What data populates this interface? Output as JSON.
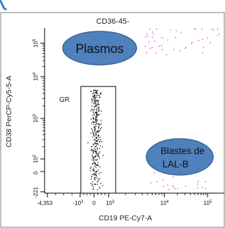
{
  "chart_data": {
    "type": "scatter",
    "title": "CD36-45-",
    "xlabel": "CD19 PE-Cy7-A",
    "ylabel": "CD38 PerCP-Cy5-5-A",
    "x_scale": "biexponential",
    "y_scale": "biexponential",
    "x_tick_labels": [
      "-4,353",
      "-10^3",
      "0",
      "10^3",
      "10^4",
      "10^5"
    ],
    "y_tick_labels": [
      "-221",
      "0",
      "10^2",
      "10^3",
      "10^4",
      "10^5"
    ],
    "gates": [
      {
        "name": "GR",
        "x_range": [
          -1000,
          1000
        ],
        "y_range": [
          -221,
          9000
        ]
      }
    ],
    "annotations": [
      {
        "text": "Plasmos",
        "color": "#4f81bd"
      },
      {
        "text": "Blastes de LAL-B",
        "color": "#4f81bd"
      }
    ],
    "series": [
      {
        "color": "#111111",
        "points": "dense events inside GR gate, concentrated near x 0 and y 10^1 to 10^2.5"
      },
      {
        "color": "#e040e0",
        "points": "sparse events near top-right and bottom-right regions"
      }
    ],
    "grid": false,
    "legend": "none"
  },
  "colors": {
    "accent": "#4f81bd",
    "events_dark": "#111111",
    "events_magenta": "#e040e0",
    "arrow": "#3a7fd0"
  }
}
